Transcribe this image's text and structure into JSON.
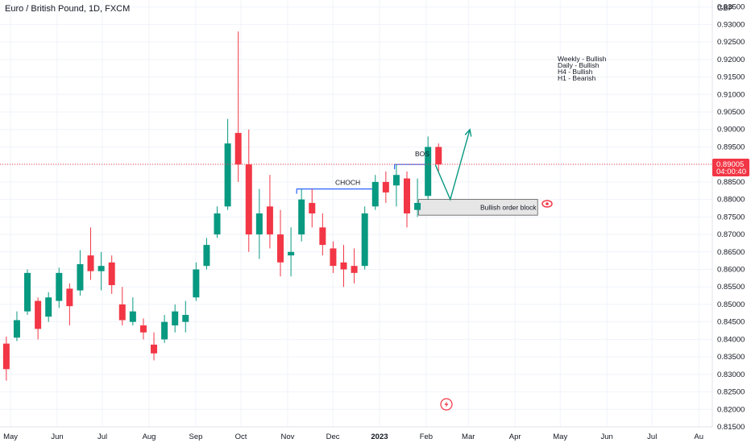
{
  "header": {
    "symbol_title": "Euro / British Pound, 1D, FXCM"
  },
  "price_axis": {
    "currency": "GBP",
    "ticks": [
      "0.93500",
      "0.93000",
      "0.92500",
      "0.92000",
      "0.91500",
      "0.91000",
      "0.90500",
      "0.90000",
      "0.89500",
      "0.89000",
      "0.88500",
      "0.88000",
      "0.87500",
      "0.87000",
      "0.86500",
      "0.86000",
      "0.85500",
      "0.85000",
      "0.84500",
      "0.84000",
      "0.83500",
      "0.83000",
      "0.82500",
      "0.82000",
      "0.81500"
    ]
  },
  "time_axis": {
    "labels": [
      "May",
      "Jun",
      "Jul",
      "Aug",
      "Sep",
      "Oct",
      "Nov",
      "Dec",
      "2023",
      "Feb",
      "Mar",
      "Apr",
      "May",
      "Jun",
      "Jul",
      "Au"
    ]
  },
  "last_price": {
    "value": "0.89005",
    "countdown": "04:00:40",
    "color": "#f23645"
  },
  "annotations": {
    "timeframe_bias": [
      "Weekly - Bullish",
      "Daily - Bullish",
      "H4 - Bullish",
      "H1 - Bearish"
    ],
    "choch_label": "CHOCH",
    "bos_label": "BOS",
    "order_block_label": "Bullish order block"
  },
  "colors": {
    "up": "#089981",
    "down": "#f23645",
    "level_line": "#2962ff",
    "projection": "#089981",
    "grid": "#f0f3fa",
    "axis_text": "#131722"
  },
  "chart_data": {
    "type": "candlestick",
    "title": "Euro / British Pound, 1D, FXCM",
    "ylabel": "GBP",
    "ylim": [
      0.815,
      0.937
    ],
    "x_range": [
      "2022-04-24",
      "2023-08-10"
    ],
    "candles": [
      {
        "date": "2022-04-25",
        "open": 0.8388,
        "high": 0.8408,
        "low": 0.8282,
        "close": 0.8315
      },
      {
        "date": "2022-05-02",
        "open": 0.8405,
        "high": 0.848,
        "low": 0.8395,
        "close": 0.8455
      },
      {
        "date": "2022-05-09",
        "open": 0.848,
        "high": 0.86,
        "low": 0.847,
        "close": 0.859
      },
      {
        "date": "2022-05-16",
        "open": 0.851,
        "high": 0.852,
        "low": 0.84,
        "close": 0.843
      },
      {
        "date": "2022-05-23",
        "open": 0.8465,
        "high": 0.8535,
        "low": 0.845,
        "close": 0.852
      },
      {
        "date": "2022-05-30",
        "open": 0.851,
        "high": 0.8605,
        "low": 0.849,
        "close": 0.859
      },
      {
        "date": "2022-06-06",
        "open": 0.8545,
        "high": 0.856,
        "low": 0.844,
        "close": 0.8495
      },
      {
        "date": "2022-06-13",
        "open": 0.854,
        "high": 0.8655,
        "low": 0.8525,
        "close": 0.8615
      },
      {
        "date": "2022-06-20",
        "open": 0.864,
        "high": 0.872,
        "low": 0.857,
        "close": 0.8595
      },
      {
        "date": "2022-06-27",
        "open": 0.8595,
        "high": 0.865,
        "low": 0.854,
        "close": 0.861
      },
      {
        "date": "2022-07-04",
        "open": 0.862,
        "high": 0.864,
        "low": 0.853,
        "close": 0.8555
      },
      {
        "date": "2022-07-11",
        "open": 0.85,
        "high": 0.855,
        "low": 0.844,
        "close": 0.8455
      },
      {
        "date": "2022-07-18",
        "open": 0.845,
        "high": 0.852,
        "low": 0.844,
        "close": 0.848
      },
      {
        "date": "2022-07-25",
        "open": 0.844,
        "high": 0.846,
        "low": 0.84,
        "close": 0.842
      },
      {
        "date": "2022-08-01",
        "open": 0.8385,
        "high": 0.842,
        "low": 0.834,
        "close": 0.836
      },
      {
        "date": "2022-08-08",
        "open": 0.84,
        "high": 0.847,
        "low": 0.839,
        "close": 0.845
      },
      {
        "date": "2022-08-15",
        "open": 0.844,
        "high": 0.85,
        "low": 0.842,
        "close": 0.848
      },
      {
        "date": "2022-08-22",
        "open": 0.845,
        "high": 0.851,
        "low": 0.842,
        "close": 0.847
      },
      {
        "date": "2022-08-29",
        "open": 0.852,
        "high": 0.862,
        "low": 0.851,
        "close": 0.86
      },
      {
        "date": "2022-09-05",
        "open": 0.861,
        "high": 0.869,
        "low": 0.86,
        "close": 0.867
      },
      {
        "date": "2022-09-12",
        "open": 0.87,
        "high": 0.878,
        "low": 0.869,
        "close": 0.876
      },
      {
        "date": "2022-09-19",
        "open": 0.878,
        "high": 0.903,
        "low": 0.877,
        "close": 0.896
      },
      {
        "date": "2022-09-26",
        "open": 0.899,
        "high": 0.928,
        "low": 0.885,
        "close": 0.89
      },
      {
        "date": "2022-10-03",
        "open": 0.89,
        "high": 0.9,
        "low": 0.865,
        "close": 0.87
      },
      {
        "date": "2022-10-10",
        "open": 0.87,
        "high": 0.883,
        "low": 0.863,
        "close": 0.876
      },
      {
        "date": "2022-10-17",
        "open": 0.878,
        "high": 0.887,
        "low": 0.866,
        "close": 0.87
      },
      {
        "date": "2022-10-24",
        "open": 0.87,
        "high": 0.877,
        "low": 0.858,
        "close": 0.862
      },
      {
        "date": "2022-10-31",
        "open": 0.864,
        "high": 0.872,
        "low": 0.858,
        "close": 0.865
      },
      {
        "date": "2022-11-07",
        "open": 0.87,
        "high": 0.883,
        "low": 0.868,
        "close": 0.88
      },
      {
        "date": "2022-11-14",
        "open": 0.879,
        "high": 0.883,
        "low": 0.872,
        "close": 0.876
      },
      {
        "date": "2022-11-21",
        "open": 0.872,
        "high": 0.876,
        "low": 0.864,
        "close": 0.867
      },
      {
        "date": "2022-11-28",
        "open": 0.866,
        "high": 0.868,
        "low": 0.859,
        "close": 0.861
      },
      {
        "date": "2022-12-05",
        "open": 0.862,
        "high": 0.867,
        "low": 0.855,
        "close": 0.86
      },
      {
        "date": "2022-12-12",
        "open": 0.861,
        "high": 0.866,
        "low": 0.856,
        "close": 0.859
      },
      {
        "date": "2022-12-19",
        "open": 0.861,
        "high": 0.878,
        "low": 0.86,
        "close": 0.876
      },
      {
        "date": "2022-12-26",
        "open": 0.878,
        "high": 0.887,
        "low": 0.877,
        "close": 0.885
      },
      {
        "date": "2023-01-02",
        "open": 0.885,
        "high": 0.888,
        "low": 0.879,
        "close": 0.882
      },
      {
        "date": "2023-01-09",
        "open": 0.884,
        "high": 0.89,
        "low": 0.878,
        "close": 0.887
      },
      {
        "date": "2023-01-16",
        "open": 0.886,
        "high": 0.888,
        "low": 0.872,
        "close": 0.876
      },
      {
        "date": "2023-01-23",
        "open": 0.877,
        "high": 0.886,
        "low": 0.875,
        "close": 0.879
      },
      {
        "date": "2023-01-30",
        "open": 0.881,
        "high": 0.898,
        "low": 0.88,
        "close": 0.895
      },
      {
        "date": "2023-02-06",
        "open": 0.895,
        "high": 0.896,
        "low": 0.888,
        "close": 0.89
      }
    ],
    "last_price": 0.89005,
    "levels": [
      {
        "label": "CHOCH",
        "price": 0.883,
        "from": "2022-11-07",
        "to": "2022-12-29"
      },
      {
        "label": "BOS",
        "price": 0.89,
        "from": "2023-01-11",
        "to": "2023-02-01"
      }
    ],
    "zones": [
      {
        "label": "Bullish order block",
        "top": 0.88,
        "bottom": 0.8755,
        "from": "2023-01-27",
        "to": "2023-04-16"
      }
    ],
    "projection": [
      {
        "date": "2023-02-07",
        "price": 0.89
      },
      {
        "date": "2023-02-17",
        "price": 0.88
      },
      {
        "date": "2023-03-02",
        "price": 0.9
      }
    ]
  }
}
